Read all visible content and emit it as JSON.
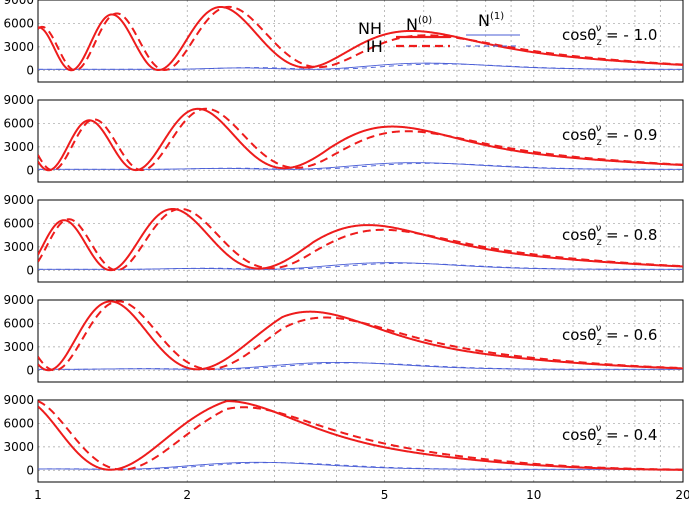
{
  "chart_data": {
    "type": "line",
    "x_scale": "log",
    "xlim": [
      1,
      20
    ],
    "x_ticks": [
      "1",
      "2",
      "5",
      "10",
      "20"
    ],
    "x_tick_values": [
      1,
      2,
      5,
      10,
      20
    ],
    "ylim": [
      -1500,
      9000
    ],
    "y_ticks": [
      "9000",
      "6000",
      "3000",
      "0"
    ],
    "y_tick_values": [
      9000,
      6000,
      3000,
      0
    ],
    "grid": true,
    "legend": {
      "placement": "top-right",
      "hierarchy_labels": [
        "NH",
        "IH"
      ],
      "order_labels": [
        "N",
        "N"
      ],
      "order_superscripts": [
        "(0)",
        "(1)"
      ]
    },
    "colors": {
      "N0": "#ee1c1c",
      "N1": "#4a5ed6",
      "grid": "#a0a0a0"
    },
    "panels": [
      {
        "label_main": "cos",
        "label_theta": "θ",
        "label_sub": "z",
        "label_sup": "ν",
        "label_value": "= - 1.0",
        "amplitude": 8000,
        "phase_scale": 22,
        "envelope_peak": 9.5,
        "envelope_width": 0.9
      },
      {
        "label_main": "cos",
        "label_theta": "θ",
        "label_sub": "z",
        "label_sup": "ν",
        "label_value": "= - 0.9",
        "amplitude": 7800,
        "phase_scale": 19.8,
        "envelope_peak": 9.5,
        "envelope_width": 0.9
      },
      {
        "label_main": "cos",
        "label_theta": "θ",
        "label_sub": "z",
        "label_sup": "ν",
        "label_value": "= - 0.8",
        "amplitude": 7800,
        "phase_scale": 17.6,
        "envelope_peak": 8.5,
        "envelope_width": 0.85
      },
      {
        "label_main": "cos",
        "label_theta": "θ",
        "label_sub": "z",
        "label_sup": "ν",
        "label_value": "= - 0.6",
        "amplitude": 8800,
        "phase_scale": 13.2,
        "envelope_peak": 7.0,
        "envelope_width": 0.8
      },
      {
        "label_main": "cos",
        "label_theta": "θ",
        "label_sub": "z",
        "label_sup": "ν",
        "label_value": "= - 0.4",
        "amplitude": 9000,
        "phase_scale": 8.8,
        "envelope_peak": 5.0,
        "envelope_width": 0.75
      }
    ]
  }
}
